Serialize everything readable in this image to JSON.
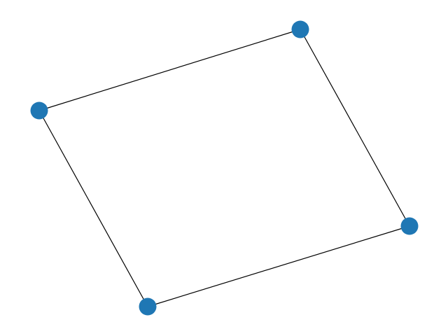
{
  "graph": {
    "node_color": "#1f77b4",
    "edge_color": "#000000",
    "background_color": "#ffffff",
    "nodes": [
      {
        "id": "node-a"
      },
      {
        "id": "node-b"
      },
      {
        "id": "node-c"
      },
      {
        "id": "node-d"
      }
    ],
    "edges": [
      {
        "source": "node-a",
        "target": "node-b"
      },
      {
        "source": "node-b",
        "target": "node-c"
      },
      {
        "source": "node-c",
        "target": "node-d"
      },
      {
        "source": "node-d",
        "target": "node-a"
      }
    ]
  }
}
